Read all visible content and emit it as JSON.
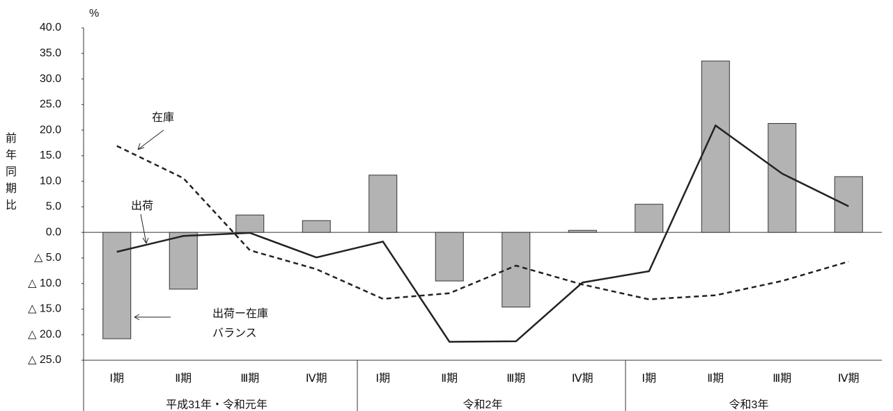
{
  "chart_data": {
    "type": "bar_line",
    "y_unit": "%",
    "y_label": "前年同期比",
    "categories": [
      "Ⅰ期",
      "Ⅱ期",
      "Ⅲ期",
      "Ⅳ期",
      "Ⅰ期",
      "Ⅱ期",
      "Ⅲ期",
      "Ⅳ期",
      "Ⅰ期",
      "Ⅱ期",
      "Ⅲ期",
      "Ⅳ期"
    ],
    "groups": [
      "平成31年・令和元年",
      "令和2年",
      "令和3年"
    ],
    "series": [
      {
        "name": "出荷ー在庫\nバランス",
        "type": "bar",
        "color": "#b3b3b3",
        "values": [
          -20.8,
          -11.1,
          3.4,
          2.3,
          11.2,
          -9.5,
          -14.6,
          0.4,
          5.5,
          33.5,
          21.3,
          10.9
        ]
      },
      {
        "name": "出荷",
        "type": "line",
        "color": "#222222",
        "dash": false,
        "values": [
          -3.8,
          -0.7,
          -0.1,
          -4.9,
          -1.8,
          -21.4,
          -21.3,
          -9.8,
          -7.6,
          20.9,
          11.5,
          5.1
        ]
      },
      {
        "name": "在庫",
        "type": "line",
        "color": "#222222",
        "dash": true,
        "values": [
          16.9,
          10.6,
          -3.5,
          -7.2,
          -13.0,
          -11.9,
          -6.5,
          -10.2,
          -13.1,
          -12.3,
          -9.5,
          -5.7
        ]
      }
    ],
    "ylim": [
      -25,
      40
    ],
    "yticks": [
      {
        "value": 40,
        "label": "40.0"
      },
      {
        "value": 35,
        "label": "35.0"
      },
      {
        "value": 30,
        "label": "30.0"
      },
      {
        "value": 25,
        "label": "25.0"
      },
      {
        "value": 20,
        "label": "20.0"
      },
      {
        "value": 15,
        "label": "15.0"
      },
      {
        "value": 10,
        "label": "10.0"
      },
      {
        "value": 5,
        "label": "5.0"
      },
      {
        "value": 0,
        "label": "0.0"
      },
      {
        "value": -5,
        "label": "△ 5.0"
      },
      {
        "value": -10,
        "label": "△ 10.0"
      },
      {
        "value": -15,
        "label": "△ 15.0"
      },
      {
        "value": -20,
        "label": "△ 20.0"
      },
      {
        "value": -25,
        "label": "△ 25.0"
      }
    ],
    "grid": false
  }
}
